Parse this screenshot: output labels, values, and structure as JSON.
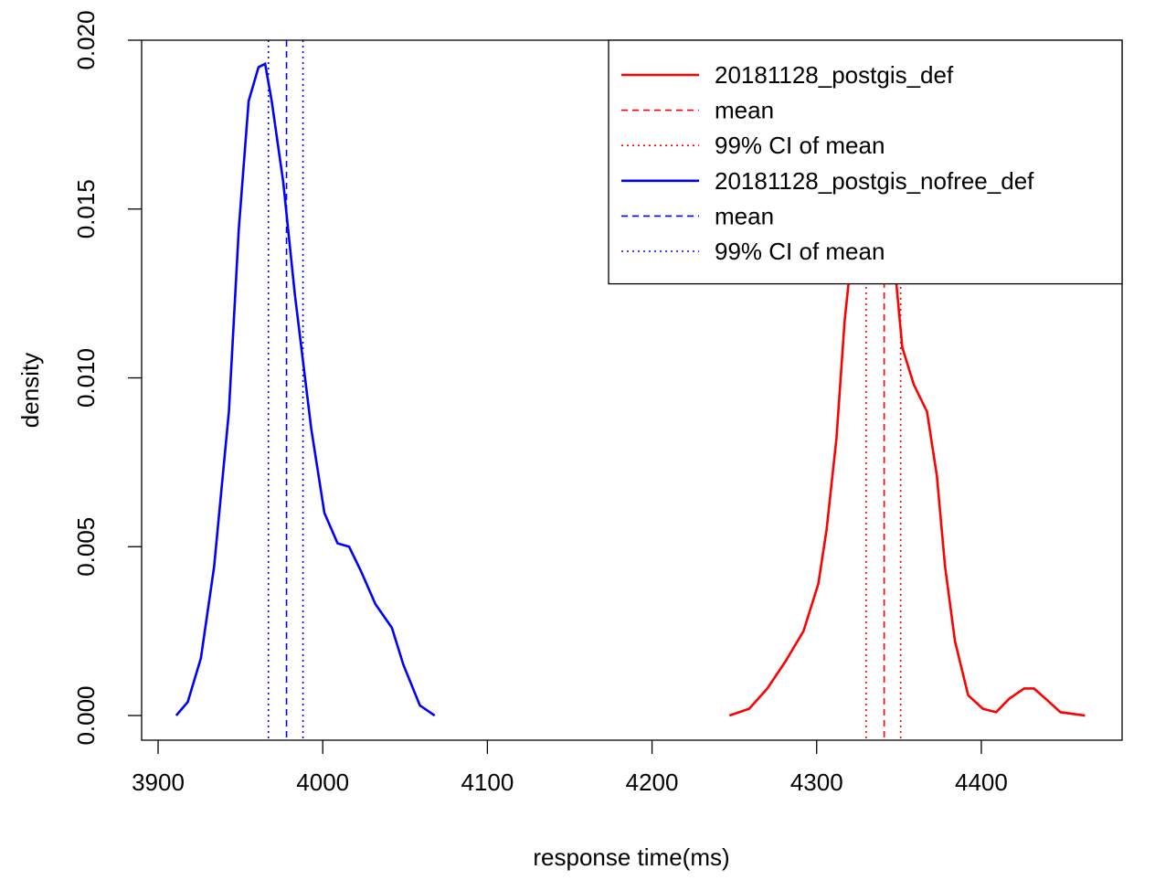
{
  "chart_data": {
    "type": "line",
    "xlabel": "response time(ms)",
    "ylabel": "density",
    "xlim": [
      3890,
      4485.5
    ],
    "ylim": [
      -0.00073,
      0.02
    ],
    "xticks": [
      3900,
      4000,
      4100,
      4200,
      4300,
      4400
    ],
    "yticks": [
      {
        "value": 0,
        "label": "0.000"
      },
      0.005,
      {
        "value": 0.01,
        "label": "0.010"
      },
      0.015,
      {
        "value": 0.02,
        "label": "0.020"
      }
    ],
    "legend": "top-right",
    "series": [
      {
        "name": "20181128_postgis_def",
        "color": "#ff0000",
        "x": [
          4247,
          4259,
          4270,
          4281,
          4292,
          4301,
          4306,
          4312,
          4317,
          4323,
          4331,
          4340,
          4348,
          4352,
          4359,
          4367,
          4373,
          4378,
          4384,
          4392,
          4401,
          4409,
          4417,
          4426,
          4432,
          4439,
          4448,
          4463
        ],
        "values": [
          0.0,
          0.0002,
          0.0008,
          0.0016,
          0.0025,
          0.0039,
          0.0055,
          0.0082,
          0.0117,
          0.0145,
          0.0158,
          0.0158,
          0.013,
          0.0109,
          0.0098,
          0.009,
          0.0071,
          0.0044,
          0.0022,
          0.0006,
          0.0002,
          0.0001,
          0.0005,
          0.0008,
          0.0008,
          0.0005,
          0.0001,
          0.0
        ],
        "mean": {
          "label": "mean",
          "value": 4341
        },
        "ci": {
          "label": "99% CI  of mean",
          "values": [
            4330,
            4351
          ]
        }
      },
      {
        "name": "20181128_postgis_nofree_def",
        "color": "#0000ff",
        "x": [
          3911,
          3918,
          3926,
          3934,
          3943,
          3949,
          3955,
          3961,
          3965,
          3969,
          3976,
          3983,
          3993,
          4001,
          4009,
          4016,
          4023,
          4032,
          4042,
          4049,
          4059,
          4068
        ],
        "values": [
          0.0,
          0.0004,
          0.0017,
          0.0044,
          0.009,
          0.0144,
          0.0182,
          0.0192,
          0.0193,
          0.0182,
          0.0158,
          0.0125,
          0.0085,
          0.006,
          0.0051,
          0.005,
          0.0043,
          0.0033,
          0.0026,
          0.0015,
          0.0003,
          0.0
        ],
        "mean": {
          "label": "mean",
          "value": 3978
        },
        "ci": {
          "label": "99% CI  of mean",
          "values": [
            3967,
            3988
          ]
        }
      }
    ]
  }
}
